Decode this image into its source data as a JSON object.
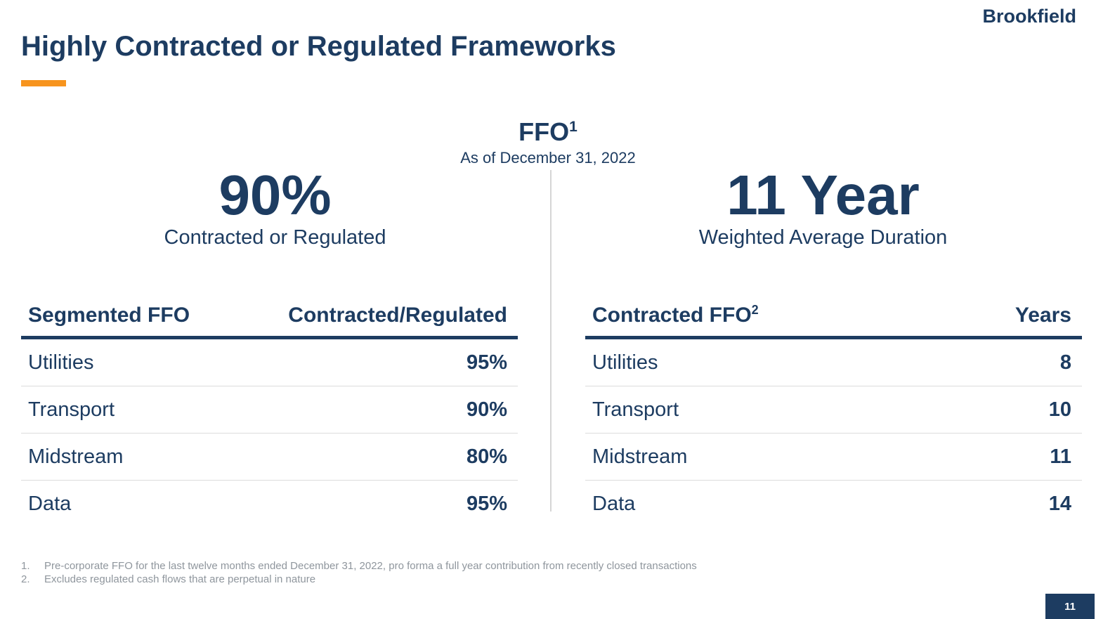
{
  "brand": {
    "logo_text": "Brookfield",
    "navy": "#1d3c61",
    "orange": "#f7941e"
  },
  "header": {
    "title": "Highly Contracted or Regulated Frameworks"
  },
  "center": {
    "heading": "FFO",
    "heading_superscript": "1",
    "subheading": "As of December 31, 2022"
  },
  "stats": {
    "left": {
      "value": "90%",
      "label": "Contracted or Regulated"
    },
    "right": {
      "value": "11 Year",
      "label": "Weighted Average Duration"
    }
  },
  "tables": {
    "left": {
      "header": {
        "col1": "Segmented FFO",
        "col2": "Contracted/Regulated"
      },
      "rows": [
        {
          "label": "Utilities",
          "value": "95%"
        },
        {
          "label": "Transport",
          "value": "90%"
        },
        {
          "label": "Midstream",
          "value": "80%"
        },
        {
          "label": "Data",
          "value": "95%"
        }
      ]
    },
    "right": {
      "header": {
        "col1": "Contracted FFO",
        "col1_superscript": "2",
        "col2": "Years"
      },
      "rows": [
        {
          "label": "Utilities",
          "value": "8"
        },
        {
          "label": "Transport",
          "value": "10"
        },
        {
          "label": "Midstream",
          "value": "11"
        },
        {
          "label": "Data",
          "value": "14"
        }
      ]
    }
  },
  "footnotes": [
    {
      "num": "1.",
      "text": "Pre-corporate FFO for the last twelve months ended December 31, 2022, pro forma a full year contribution from recently closed transactions"
    },
    {
      "num": "2.",
      "text": "Excludes regulated cash flows that are perpetual in nature"
    }
  ],
  "page_number": "11"
}
